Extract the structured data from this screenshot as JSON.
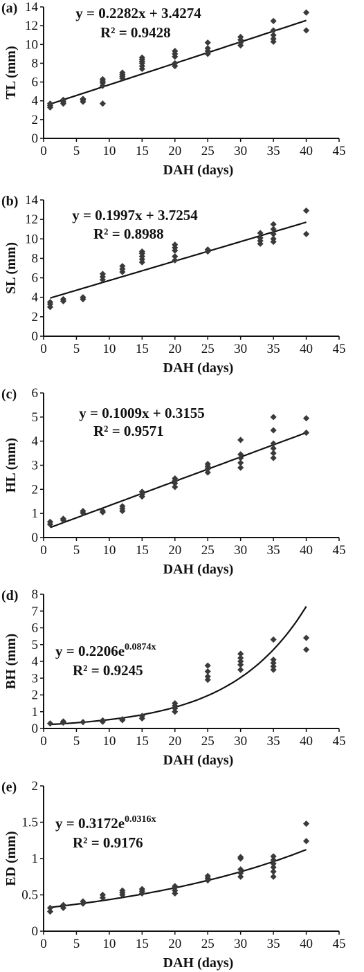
{
  "chart_data": [
    {
      "type": "scatter",
      "panel_label": "(a)",
      "ylabel": "TL (mm)",
      "xlabel": "DAH (days)",
      "xlim": [
        0,
        45
      ],
      "ylim": [
        0,
        14
      ],
      "xticks": [
        0,
        5,
        10,
        15,
        20,
        25,
        30,
        35,
        40,
        45
      ],
      "yticks": [
        0,
        2,
        4,
        6,
        8,
        10,
        12,
        14
      ],
      "equation": "y = 0.2282x + 3.4274",
      "r_squared": "R² = 0.9428",
      "fit": {
        "kind": "linear",
        "a": 0.2282,
        "b": 3.4274,
        "x_range": [
          1,
          40
        ]
      },
      "points": [
        [
          1,
          3.3
        ],
        [
          1,
          3.5
        ],
        [
          1,
          3.7
        ],
        [
          3,
          3.7
        ],
        [
          3,
          3.9
        ],
        [
          3,
          4.1
        ],
        [
          6,
          3.9
        ],
        [
          6,
          4.1
        ],
        [
          6,
          4.2
        ],
        [
          9,
          3.7
        ],
        [
          9,
          5.6
        ],
        [
          9,
          5.9
        ],
        [
          9,
          6.1
        ],
        [
          9,
          6.3
        ],
        [
          12,
          6.4
        ],
        [
          12,
          6.6
        ],
        [
          12,
          6.8
        ],
        [
          12,
          7.0
        ],
        [
          15,
          7.4
        ],
        [
          15,
          7.7
        ],
        [
          15,
          8.0
        ],
        [
          15,
          8.2
        ],
        [
          15,
          8.4
        ],
        [
          15,
          8.6
        ],
        [
          20,
          7.7
        ],
        [
          20,
          8.0
        ],
        [
          20,
          8.7
        ],
        [
          20,
          9.0
        ],
        [
          20,
          9.3
        ],
        [
          25,
          9.0
        ],
        [
          25,
          9.3
        ],
        [
          25,
          9.6
        ],
        [
          25,
          10.2
        ],
        [
          30,
          9.9
        ],
        [
          30,
          10.2
        ],
        [
          30,
          10.5
        ],
        [
          30,
          10.8
        ],
        [
          35,
          10.3
        ],
        [
          35,
          10.6
        ],
        [
          35,
          11.0
        ],
        [
          35,
          11.5
        ],
        [
          35,
          12.5
        ],
        [
          40,
          11.5
        ],
        [
          40,
          13.4
        ]
      ]
    },
    {
      "type": "scatter",
      "panel_label": "(b)",
      "ylabel": "SL (mm)",
      "xlabel": "DAH (days)",
      "xlim": [
        0,
        45
      ],
      "ylim": [
        0,
        14
      ],
      "xticks": [
        0,
        5,
        10,
        15,
        20,
        25,
        30,
        35,
        40,
        45
      ],
      "yticks": [
        0,
        2,
        4,
        6,
        8,
        10,
        12,
        14
      ],
      "equation": "y = 0.1997x + 3.7254",
      "r_squared": "R² = 0.8988",
      "fit": {
        "kind": "linear",
        "a": 0.1997,
        "b": 3.7254,
        "x_range": [
          1,
          40
        ]
      },
      "points": [
        [
          1,
          3.0
        ],
        [
          1,
          3.3
        ],
        [
          1,
          3.5
        ],
        [
          3,
          3.6
        ],
        [
          3,
          3.8
        ],
        [
          6,
          3.8
        ],
        [
          6,
          4.0
        ],
        [
          9,
          5.8
        ],
        [
          9,
          6.1
        ],
        [
          9,
          6.4
        ],
        [
          12,
          6.6
        ],
        [
          12,
          6.9
        ],
        [
          12,
          7.2
        ],
        [
          15,
          7.6
        ],
        [
          15,
          7.9
        ],
        [
          15,
          8.2
        ],
        [
          15,
          8.5
        ],
        [
          15,
          8.7
        ],
        [
          20,
          7.8
        ],
        [
          20,
          8.2
        ],
        [
          20,
          8.8
        ],
        [
          20,
          9.1
        ],
        [
          20,
          9.4
        ],
        [
          25,
          8.7
        ],
        [
          25,
          8.9
        ],
        [
          33,
          9.5
        ],
        [
          33,
          9.8
        ],
        [
          33,
          10.1
        ],
        [
          33,
          10.6
        ],
        [
          35,
          9.7
        ],
        [
          35,
          10.0
        ],
        [
          35,
          10.5
        ],
        [
          35,
          11.0
        ],
        [
          35,
          11.5
        ],
        [
          40,
          10.5
        ],
        [
          40,
          12.9
        ]
      ]
    },
    {
      "type": "scatter",
      "panel_label": "(c)",
      "ylabel": "HL (mm)",
      "xlabel": "DAH (days)",
      "xlim": [
        0,
        45
      ],
      "ylim": [
        0,
        6
      ],
      "xticks": [
        0,
        5,
        10,
        15,
        20,
        25,
        30,
        35,
        40,
        45
      ],
      "yticks": [
        0,
        1,
        2,
        3,
        4,
        5,
        6
      ],
      "equation": "y = 0.1009x + 0.3155",
      "r_squared": "R² = 0.9571",
      "fit": {
        "kind": "linear",
        "a": 0.1009,
        "b": 0.3155,
        "x_range": [
          1,
          40
        ]
      },
      "points": [
        [
          1,
          0.55
        ],
        [
          1,
          0.65
        ],
        [
          3,
          0.72
        ],
        [
          3,
          0.78
        ],
        [
          6,
          1.02
        ],
        [
          6,
          1.1
        ],
        [
          9,
          1.05
        ],
        [
          9,
          1.1
        ],
        [
          12,
          1.1
        ],
        [
          12,
          1.2
        ],
        [
          12,
          1.3
        ],
        [
          15,
          1.7
        ],
        [
          15,
          1.8
        ],
        [
          15,
          1.9
        ],
        [
          20,
          2.1
        ],
        [
          20,
          2.25
        ],
        [
          20,
          2.35
        ],
        [
          20,
          2.45
        ],
        [
          25,
          2.7
        ],
        [
          25,
          2.85
        ],
        [
          25,
          2.95
        ],
        [
          25,
          3.05
        ],
        [
          30,
          2.9
        ],
        [
          30,
          3.1
        ],
        [
          30,
          3.3
        ],
        [
          30,
          3.45
        ],
        [
          30,
          4.05
        ],
        [
          35,
          3.3
        ],
        [
          35,
          3.5
        ],
        [
          35,
          3.7
        ],
        [
          35,
          3.9
        ],
        [
          35,
          4.45
        ],
        [
          35,
          5.0
        ],
        [
          40,
          4.35
        ],
        [
          40,
          4.95
        ]
      ]
    },
    {
      "type": "scatter",
      "panel_label": "(d)",
      "ylabel": "BH (mm)",
      "xlabel": "DAH (days)",
      "xlim": [
        0,
        45
      ],
      "ylim": [
        0,
        8
      ],
      "xticks": [
        0,
        5,
        10,
        15,
        20,
        25,
        30,
        35,
        40,
        45
      ],
      "yticks": [
        0,
        1,
        2,
        3,
        4,
        5,
        6,
        7,
        8
      ],
      "equation_base": "y = 0.2206e",
      "equation_exp": "0.0874x",
      "r_squared": "R² = 0.9245",
      "fit": {
        "kind": "exponential",
        "a": 0.2206,
        "b": 0.0874,
        "x_range": [
          1,
          40
        ]
      },
      "points": [
        [
          1,
          0.3
        ],
        [
          3,
          0.35
        ],
        [
          3,
          0.42
        ],
        [
          6,
          0.38
        ],
        [
          9,
          0.4
        ],
        [
          9,
          0.48
        ],
        [
          12,
          0.5
        ],
        [
          12,
          0.55
        ],
        [
          15,
          0.6
        ],
        [
          15,
          0.75
        ],
        [
          20,
          1.0
        ],
        [
          20,
          1.2
        ],
        [
          20,
          1.35
        ],
        [
          20,
          1.5
        ],
        [
          25,
          2.9
        ],
        [
          25,
          3.1
        ],
        [
          25,
          3.4
        ],
        [
          25,
          3.75
        ],
        [
          30,
          3.5
        ],
        [
          30,
          3.8
        ],
        [
          30,
          4.0
        ],
        [
          30,
          4.2
        ],
        [
          30,
          4.45
        ],
        [
          35,
          3.5
        ],
        [
          35,
          3.7
        ],
        [
          35,
          3.9
        ],
        [
          35,
          4.1
        ],
        [
          35,
          5.3
        ],
        [
          40,
          4.7
        ],
        [
          40,
          5.4
        ]
      ]
    },
    {
      "type": "scatter",
      "panel_label": "(e)",
      "ylabel": "ED (mm)",
      "xlabel": "DAH (days)",
      "xlim": [
        0,
        45
      ],
      "ylim": [
        0,
        2
      ],
      "xticks": [
        0,
        5,
        10,
        15,
        20,
        25,
        30,
        35,
        40,
        45
      ],
      "yticks": [
        0,
        0.5,
        1,
        1.5,
        2
      ],
      "ytick_labels": [
        "0",
        "0.5",
        "1",
        "1.5",
        "2"
      ],
      "equation_base": "y = 0.3172e",
      "equation_exp": "0.0316x",
      "r_squared": "R² = 0.9176",
      "fit": {
        "kind": "exponential",
        "a": 0.3172,
        "b": 0.0316,
        "x_range": [
          1,
          40
        ]
      },
      "points": [
        [
          1,
          0.27
        ],
        [
          1,
          0.32
        ],
        [
          3,
          0.32
        ],
        [
          3,
          0.36
        ],
        [
          6,
          0.38
        ],
        [
          6,
          0.41
        ],
        [
          9,
          0.46
        ],
        [
          9,
          0.5
        ],
        [
          12,
          0.5
        ],
        [
          12,
          0.53
        ],
        [
          12,
          0.56
        ],
        [
          15,
          0.52
        ],
        [
          15,
          0.55
        ],
        [
          15,
          0.58
        ],
        [
          20,
          0.52
        ],
        [
          20,
          0.56
        ],
        [
          20,
          0.6
        ],
        [
          20,
          0.62
        ],
        [
          25,
          0.7
        ],
        [
          25,
          0.73
        ],
        [
          25,
          0.76
        ],
        [
          30,
          0.75
        ],
        [
          30,
          0.8
        ],
        [
          30,
          0.85
        ],
        [
          30,
          1.0
        ],
        [
          30,
          1.02
        ],
        [
          35,
          0.75
        ],
        [
          35,
          0.82
        ],
        [
          35,
          0.88
        ],
        [
          35,
          0.93
        ],
        [
          35,
          0.98
        ],
        [
          35,
          1.03
        ],
        [
          40,
          1.24
        ],
        [
          40,
          1.48
        ]
      ]
    }
  ]
}
